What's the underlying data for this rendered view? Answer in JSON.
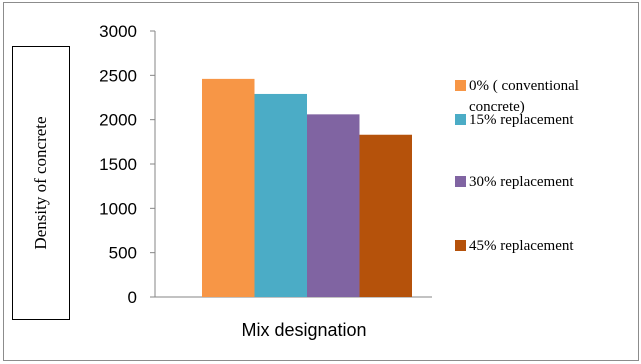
{
  "chart_data": {
    "type": "bar",
    "title": "",
    "xlabel": "Mix designation",
    "ylabel": "Density of concrete",
    "ylim": [
      0,
      3000
    ],
    "yticks": [
      "0",
      "500",
      "1000",
      "1500",
      "2000",
      "2500",
      "3000"
    ],
    "grid": false,
    "legend_position": "right",
    "categories": [
      ""
    ],
    "series": [
      {
        "name": "0% ( conventional concrete)",
        "legend_lines": [
          "0% ( conventional",
          "concrete)"
        ],
        "values": [
          2460
        ],
        "color": "#F79646"
      },
      {
        "name": "15% replacement",
        "legend_lines": [
          "15% replacement"
        ],
        "values": [
          2290
        ],
        "color": "#4BACC6"
      },
      {
        "name": "30% replacement",
        "legend_lines": [
          "30% replacement"
        ],
        "values": [
          2060
        ],
        "color": "#8064A2"
      },
      {
        "name": "45% replacement",
        "legend_lines": [
          "45% replacement"
        ],
        "values": [
          1830
        ],
        "color": "#B5520B"
      }
    ]
  }
}
